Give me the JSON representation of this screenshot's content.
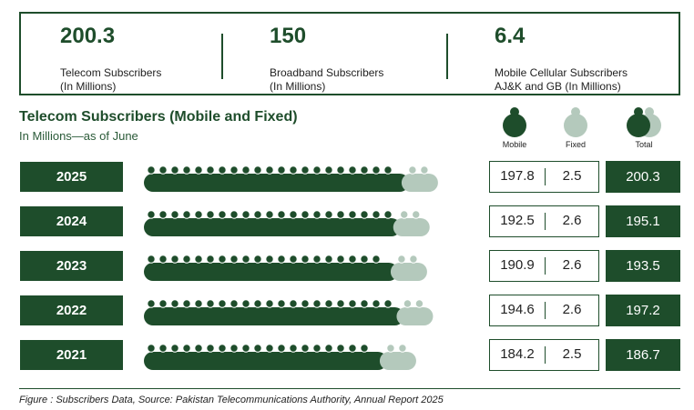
{
  "stats": [
    {
      "value": "200.3",
      "label": "Telecom Subscribers\n(In Millions)"
    },
    {
      "value": "150",
      "label": "Broadband Subscribers\n(In Millions)"
    },
    {
      "value": "6.4",
      "label": "Mobile Cellular Subscribers\nAJ&K and GB (In Millions)"
    }
  ],
  "legend": {
    "mobile": "Mobile",
    "fixed": "Fixed",
    "total": "Total"
  },
  "colors": {
    "mobile": "#1e4d2b",
    "fixed": "#b4c9bc"
  },
  "chart_data": {
    "type": "bar",
    "orientation": "horizontal",
    "stacked": true,
    "title": "Telecom Subscribers (Mobile and Fixed)",
    "subtitle": "In Millions—as of June",
    "categories": [
      "2025",
      "2024",
      "2023",
      "2022",
      "2021"
    ],
    "series": [
      {
        "name": "Mobile",
        "values": [
          197.8,
          192.5,
          190.9,
          194.6,
          184.2
        ]
      },
      {
        "name": "Fixed",
        "values": [
          2.5,
          2.6,
          2.6,
          2.6,
          2.5
        ]
      }
    ],
    "totals": [
      {
        "mobile": "197.8",
        "fixed": "2.5",
        "total": "200.3"
      },
      {
        "mobile": "192.5",
        "fixed": "2.6",
        "total": "195.1"
      },
      {
        "mobile": "190.9",
        "fixed": "2.6",
        "total": "193.5"
      },
      {
        "mobile": "194.6",
        "fixed": "2.6",
        "total": "197.2"
      },
      {
        "mobile": "184.2",
        "fixed": "2.5",
        "total": "186.7"
      }
    ]
  },
  "footer": "Figure : Subscribers Data, Source: Pakistan Telecommunications Authority, Annual Report 2025"
}
